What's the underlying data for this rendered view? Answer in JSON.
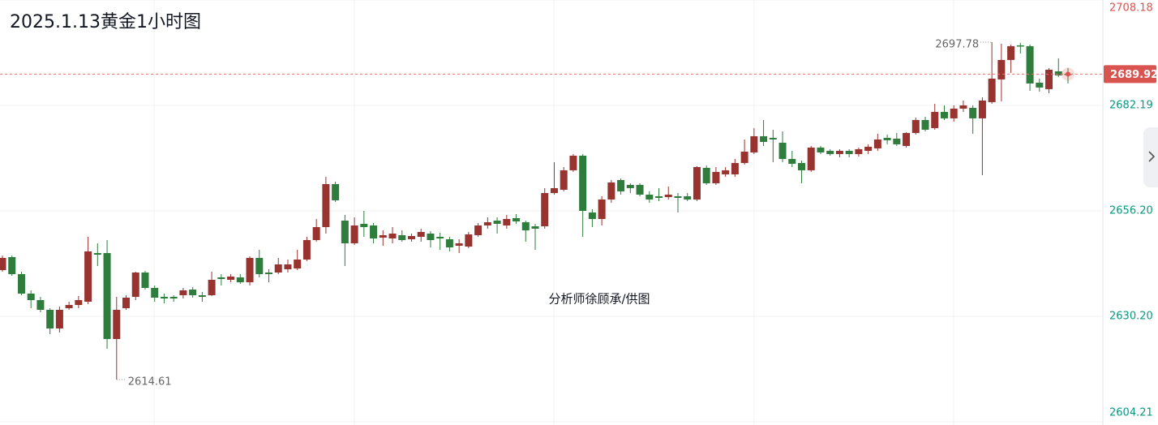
{
  "chart_data": {
    "type": "candlestick",
    "title": "2025.1.13黄金1小时图",
    "watermark": "分析师徐顾承/供图",
    "up_color": "#98332f",
    "down_color": "#2e7d3c",
    "ylim": [
      2604.21,
      2708.18
    ],
    "yticks": [
      2708.18,
      2682.19,
      {
        "value": 2656.2,
        "label": "2656.20"
      },
      {
        "value": 2630.2,
        "label": "2630.20"
      },
      2604.21
    ],
    "ytick_colors": [
      "#d9534f",
      "#089981",
      "#089981",
      "#089981",
      "#089981"
    ],
    "grid": true,
    "candles": [
      [
        2641.6,
        2645.2,
        2641.2,
        2644.6
      ],
      [
        2644.8,
        2645.2,
        2640.2,
        2640.6
      ],
      [
        2640.6,
        2641.2,
        2635.4,
        2635.8
      ],
      [
        2635.8,
        2636.6,
        2632.2,
        2634.2
      ],
      [
        2634.2,
        2635.0,
        2631.2,
        2631.8
      ],
      [
        2631.8,
        2632.2,
        2625.8,
        2627.2
      ],
      [
        2627.2,
        2632.6,
        2626.2,
        2631.8
      ],
      [
        2632.2,
        2633.8,
        2631.8,
        2633.0
      ],
      [
        2633.0,
        2635.2,
        2632.2,
        2634.2
      ],
      [
        2633.8,
        2649.8,
        2633.2,
        2646.2
      ],
      [
        2645.8,
        2648.2,
        2642.6,
        2645.4
      ],
      [
        2645.8,
        2649.0,
        2622.2,
        2624.6
      ],
      [
        2624.6,
        2635.0,
        2614.61,
        2631.8
      ],
      [
        2632.2,
        2635.4,
        2631.8,
        2634.8
      ],
      [
        2635.0,
        2641.2,
        2634.2,
        2641.0
      ],
      [
        2641.0,
        2641.4,
        2636.8,
        2637.2
      ],
      [
        2637.2,
        2637.8,
        2633.8,
        2634.8
      ],
      [
        2635.0,
        2635.8,
        2633.4,
        2634.6
      ],
      [
        2635.0,
        2635.4,
        2633.8,
        2634.6
      ],
      [
        2635.4,
        2637.2,
        2634.6,
        2636.6
      ],
      [
        2636.8,
        2637.4,
        2634.8,
        2635.4
      ],
      [
        2635.4,
        2636.2,
        2633.8,
        2635.0
      ],
      [
        2635.4,
        2641.2,
        2635.2,
        2639.2
      ],
      [
        2639.8,
        2640.6,
        2637.8,
        2639.4
      ],
      [
        2639.2,
        2640.6,
        2638.6,
        2640.0
      ],
      [
        2639.8,
        2640.6,
        2638.2,
        2638.6
      ],
      [
        2638.6,
        2645.0,
        2637.8,
        2644.6
      ],
      [
        2644.6,
        2646.6,
        2639.8,
        2640.6
      ],
      [
        2641.0,
        2641.8,
        2638.6,
        2640.6
      ],
      [
        2641.0,
        2644.6,
        2640.6,
        2643.0
      ],
      [
        2641.8,
        2644.2,
        2641.0,
        2643.0
      ],
      [
        2642.0,
        2646.6,
        2641.6,
        2644.2
      ],
      [
        2644.2,
        2649.8,
        2643.8,
        2649.0
      ],
      [
        2649.0,
        2654.2,
        2648.6,
        2652.2
      ],
      [
        2652.2,
        2664.6,
        2650.6,
        2662.8
      ],
      [
        2662.8,
        2663.4,
        2658.4,
        2658.8
      ],
      [
        2653.8,
        2655.2,
        2642.6,
        2648.2
      ],
      [
        2648.2,
        2654.6,
        2647.8,
        2652.6
      ],
      [
        2653.0,
        2656.2,
        2649.8,
        2652.2
      ],
      [
        2652.6,
        2653.2,
        2648.2,
        2649.4
      ],
      [
        2649.6,
        2651.4,
        2647.6,
        2650.2
      ],
      [
        2649.4,
        2652.2,
        2648.2,
        2650.6
      ],
      [
        2650.2,
        2651.4,
        2648.6,
        2649.0
      ],
      [
        2649.2,
        2650.6,
        2648.6,
        2650.0
      ],
      [
        2649.8,
        2651.8,
        2648.6,
        2651.0
      ],
      [
        2650.6,
        2651.2,
        2647.2,
        2649.0
      ],
      [
        2649.8,
        2650.8,
        2646.6,
        2649.4
      ],
      [
        2649.2,
        2649.8,
        2646.2,
        2647.2
      ],
      [
        2647.6,
        2649.2,
        2645.8,
        2648.2
      ],
      [
        2647.4,
        2651.0,
        2647.0,
        2650.4
      ],
      [
        2650.2,
        2653.2,
        2649.8,
        2652.6
      ],
      [
        2652.6,
        2654.6,
        2651.8,
        2653.4
      ],
      [
        2653.8,
        2654.6,
        2650.6,
        2653.0
      ],
      [
        2652.6,
        2655.2,
        2651.8,
        2654.2
      ],
      [
        2654.4,
        2655.4,
        2653.0,
        2653.6
      ],
      [
        2653.4,
        2653.8,
        2648.6,
        2651.4
      ],
      [
        2652.4,
        2653.0,
        2646.6,
        2651.8
      ],
      [
        2652.4,
        2661.8,
        2651.8,
        2660.6
      ],
      [
        2660.6,
        2668.2,
        2660.2,
        2661.8
      ],
      [
        2661.4,
        2667.0,
        2661.0,
        2666.2
      ],
      [
        2666.2,
        2670.2,
        2665.8,
        2669.8
      ],
      [
        2669.8,
        2670.2,
        2649.8,
        2656.2
      ],
      [
        2655.8,
        2656.6,
        2652.2,
        2654.2
      ],
      [
        2654.2,
        2659.8,
        2652.6,
        2659.0
      ],
      [
        2659.0,
        2663.8,
        2658.2,
        2663.2
      ],
      [
        2663.8,
        2664.2,
        2660.2,
        2661.0
      ],
      [
        2662.6,
        2663.0,
        2660.6,
        2661.8
      ],
      [
        2662.6,
        2663.0,
        2659.8,
        2660.2
      ],
      [
        2660.2,
        2661.0,
        2658.2,
        2659.0
      ],
      [
        2659.8,
        2661.8,
        2658.6,
        2659.4
      ],
      [
        2659.6,
        2662.2,
        2659.0,
        2660.2
      ],
      [
        2659.8,
        2660.6,
        2655.8,
        2659.4
      ],
      [
        2659.8,
        2660.6,
        2658.6,
        2659.0
      ],
      [
        2659.0,
        2667.2,
        2658.6,
        2667.0
      ],
      [
        2666.8,
        2667.4,
        2662.6,
        2663.0
      ],
      [
        2663.0,
        2667.0,
        2662.6,
        2665.8
      ],
      [
        2665.2,
        2667.0,
        2664.6,
        2666.2
      ],
      [
        2665.2,
        2669.0,
        2664.6,
        2668.0
      ],
      [
        2668.0,
        2673.8,
        2667.6,
        2670.8
      ],
      [
        2670.6,
        2676.6,
        2670.2,
        2674.6
      ],
      [
        2674.6,
        2678.6,
        2672.2,
        2673.2
      ],
      [
        2674.2,
        2676.2,
        2668.2,
        2673.8
      ],
      [
        2673.0,
        2675.8,
        2668.2,
        2669.0
      ],
      [
        2669.0,
        2671.0,
        2667.0,
        2667.8
      ],
      [
        2668.0,
        2668.6,
        2663.0,
        2666.2
      ],
      [
        2666.2,
        2672.2,
        2665.8,
        2671.8
      ],
      [
        2671.8,
        2672.2,
        2670.2,
        2670.6
      ],
      [
        2671.0,
        2671.4,
        2669.8,
        2670.2
      ],
      [
        2670.2,
        2671.4,
        2669.4,
        2671.0
      ],
      [
        2671.0,
        2671.4,
        2669.4,
        2670.2
      ],
      [
        2670.2,
        2671.8,
        2669.6,
        2671.4
      ],
      [
        2671.0,
        2672.6,
        2670.2,
        2672.0
      ],
      [
        2671.6,
        2675.2,
        2671.0,
        2673.8
      ],
      [
        2674.2,
        2675.0,
        2672.6,
        2673.6
      ],
      [
        2674.0,
        2675.4,
        2672.2,
        2672.6
      ],
      [
        2672.2,
        2675.6,
        2671.8,
        2675.4
      ],
      [
        2675.4,
        2679.2,
        2675.0,
        2678.6
      ],
      [
        2678.6,
        2679.4,
        2675.8,
        2676.2
      ],
      [
        2676.6,
        2682.6,
        2676.2,
        2680.6
      ],
      [
        2680.6,
        2682.2,
        2678.6,
        2679.0
      ],
      [
        2679.0,
        2682.2,
        2678.2,
        2681.4
      ],
      [
        2681.4,
        2683.4,
        2680.6,
        2682.2
      ],
      [
        2681.6,
        2682.2,
        2675.2,
        2679.0
      ],
      [
        2679.0,
        2684.2,
        2665.0,
        2683.4
      ],
      [
        2683.0,
        2697.78,
        2682.6,
        2688.8
      ],
      [
        2688.6,
        2697.4,
        2683.2,
        2693.4
      ],
      [
        2693.4,
        2697.2,
        2690.2,
        2696.8
      ],
      [
        2697.0,
        2697.6,
        2695.0,
        2696.8
      ],
      [
        2696.8,
        2697.2,
        2685.8,
        2687.6
      ],
      [
        2687.8,
        2688.8,
        2685.6,
        2686.6
      ],
      [
        2686.2,
        2691.4,
        2685.2,
        2691.0
      ],
      [
        2690.6,
        2693.8,
        2689.2,
        2689.6
      ],
      [
        2690.0,
        2691.4,
        2687.6,
        2689.92
      ]
    ]
  }
}
